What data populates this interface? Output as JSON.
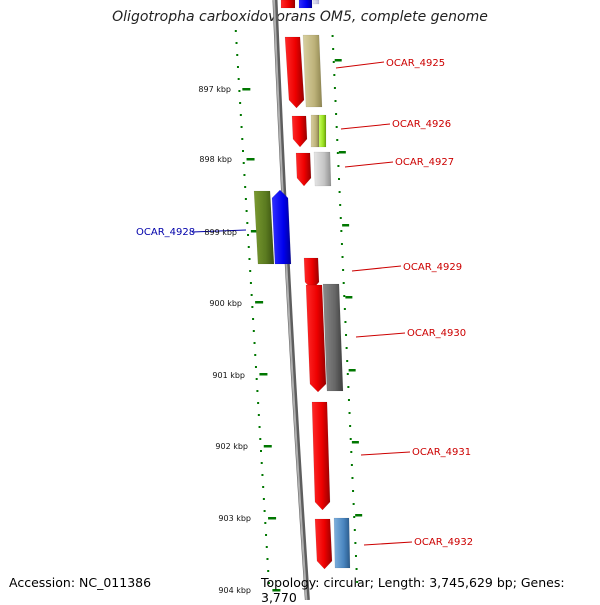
{
  "title": "Oligotropha carboxidovorans OM5, complete genome",
  "footer": {
    "accession": "Accession: NC_011386",
    "summary": "Topology: circular; Length: 3,745,629 bp; Genes: 3,770"
  },
  "axis_ticks": [
    "897 kbp",
    "898 kbp",
    "899 kbp",
    "900 kbp",
    "901 kbp",
    "902 kbp",
    "903 kbp",
    "904 kbp"
  ],
  "genes": [
    {
      "id": "OCAR_4925",
      "color": "#cc0000"
    },
    {
      "id": "OCAR_4926",
      "color": "#cc0000"
    },
    {
      "id": "OCAR_4927",
      "color": "#cc0000"
    },
    {
      "id": "OCAR_4928",
      "color": "#0000aa"
    },
    {
      "id": "OCAR_4929",
      "color": "#cc0000"
    },
    {
      "id": "OCAR_4930",
      "color": "#cc0000"
    },
    {
      "id": "OCAR_4931",
      "color": "#cc0000"
    },
    {
      "id": "OCAR_4932",
      "color": "#cc0000"
    }
  ],
  "colors": {
    "forward_gene": "#ff0000",
    "reverse_gene": "#0000ff",
    "tick_mark": "#007700",
    "backbone": "#888888"
  }
}
